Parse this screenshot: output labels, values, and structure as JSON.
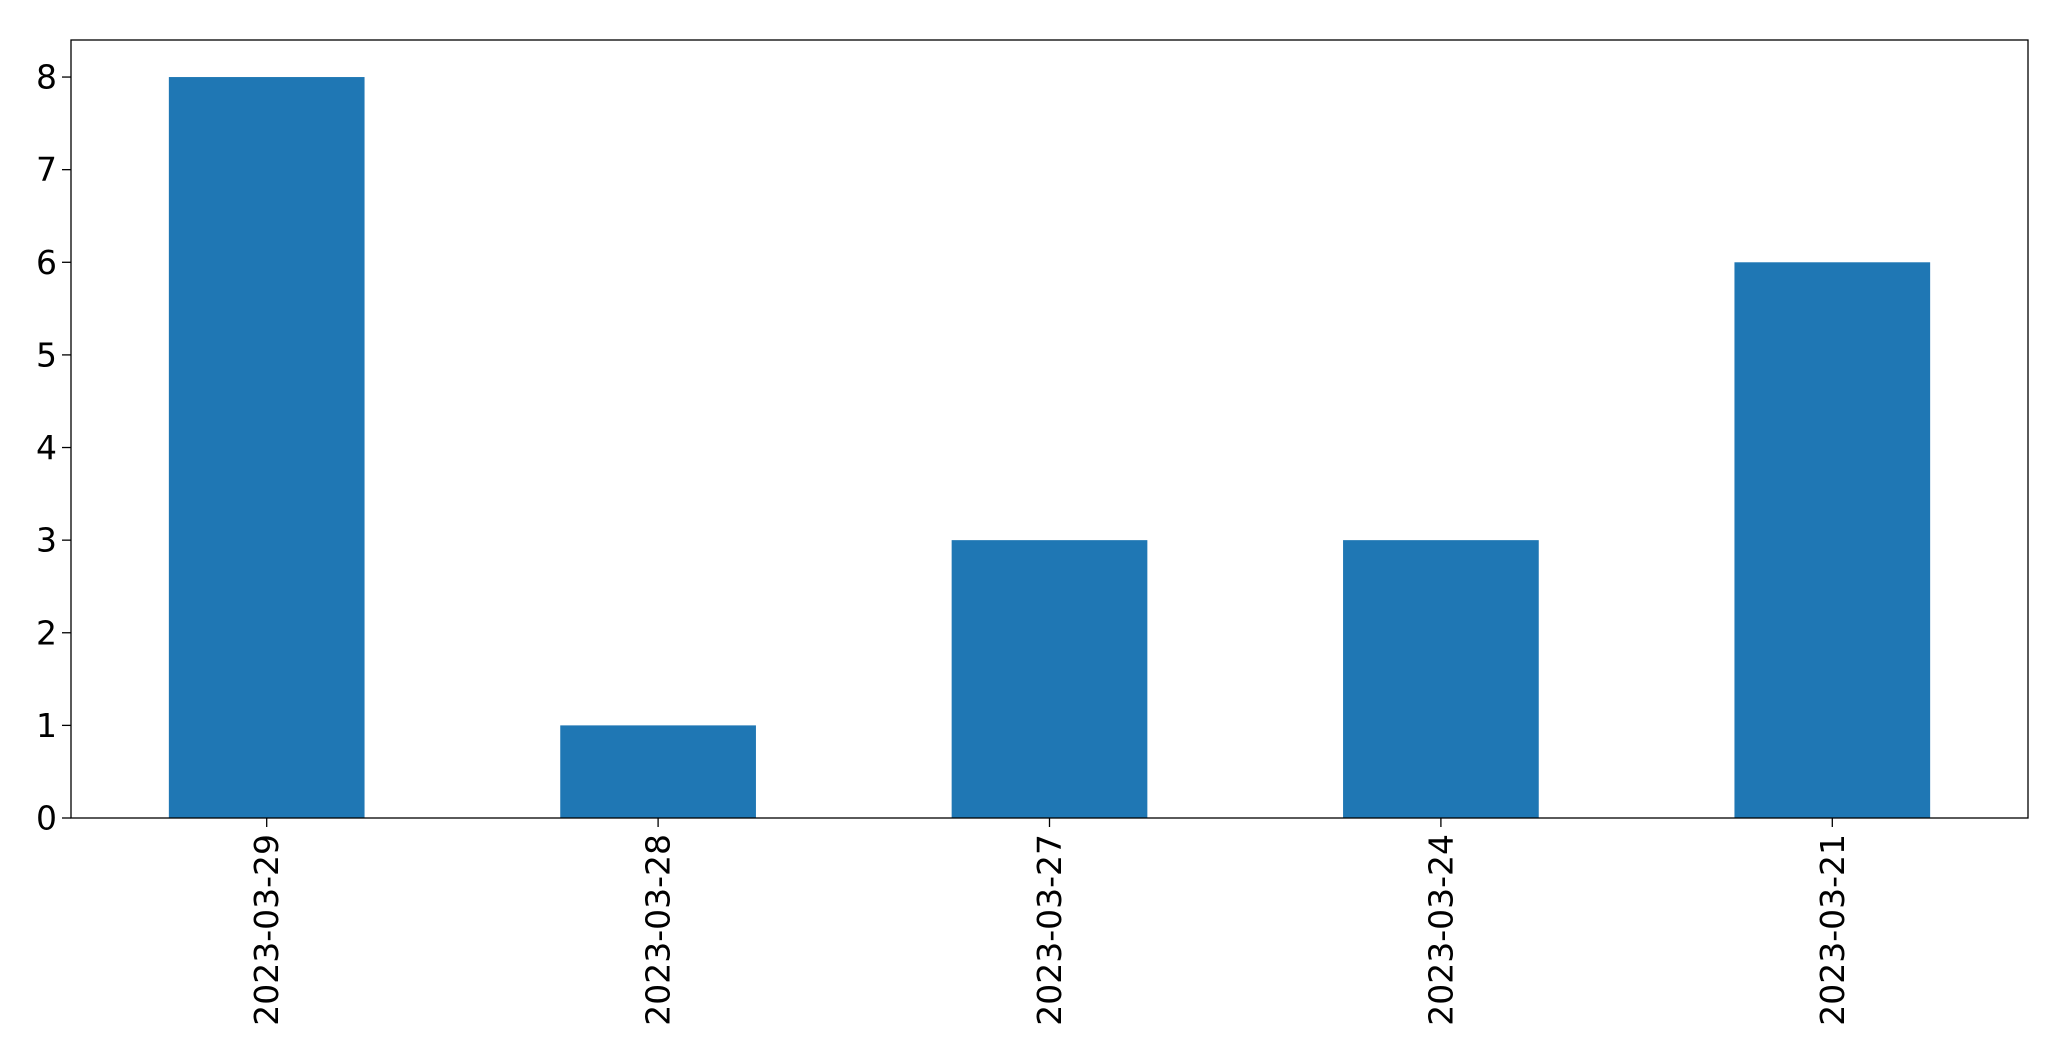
{
  "chart_data": {
    "type": "bar",
    "categories": [
      "2023-03-29",
      "2023-03-28",
      "2023-03-27",
      "2023-03-24",
      "2023-03-21"
    ],
    "values": [
      8,
      1,
      3,
      3,
      6
    ],
    "title": "",
    "xlabel": "",
    "ylabel": "",
    "ylim": [
      0,
      8.4
    ],
    "yticks": [
      "0",
      "1",
      "2",
      "3",
      "4",
      "5",
      "6",
      "7",
      "8"
    ],
    "grid": false,
    "legend": "none",
    "bar_color": "#1f77b4"
  }
}
